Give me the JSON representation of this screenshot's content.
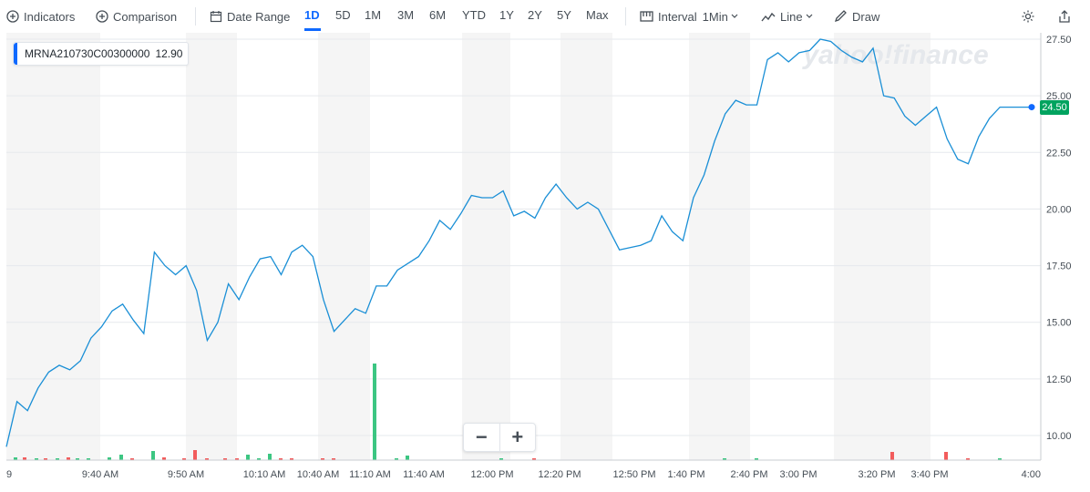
{
  "toolbar": {
    "indicators_label": "Indicators",
    "comparison_label": "Comparison",
    "date_range_label": "Date Range",
    "ranges": [
      "1D",
      "5D",
      "1M",
      "3M",
      "6M",
      "YTD",
      "1Y",
      "2Y",
      "5Y",
      "Max"
    ],
    "active_range": "1D",
    "interval_label": "Interval",
    "interval_value": "1Min",
    "chart_type_label": "Line",
    "draw_label": "Draw"
  },
  "legend": {
    "symbol": "MRNA210730C00300000",
    "price": "12.90",
    "color": "#0f69ff"
  },
  "watermark": "yahoo!finance",
  "last_price_tag": "24.50",
  "zoom": {
    "minus": "−",
    "plus": "+"
  },
  "colors": {
    "line": "#1a8fd6",
    "up_volume": "#3cc682",
    "down_volume": "#f25c5c",
    "price_tag": "#00a35f",
    "active": "#0f69ff"
  },
  "chart_data": {
    "type": "line",
    "title": "",
    "ylim": [
      9,
      27.5
    ],
    "y_ticks": [
      "27.50",
      "25.00",
      "22.50",
      "20.00",
      "17.50",
      "15.00",
      "12.50",
      "10.00"
    ],
    "x_tick_labels": [
      "9",
      "9:40 AM",
      "9:50 AM",
      "10:10 AM",
      "10:40 AM",
      "11:10 AM",
      "11:40 AM",
      "12:00 PM",
      "12:20 PM",
      "12:50 PM",
      "1:40 PM",
      "2:40 PM",
      "3:00 PM",
      "3:20 PM",
      "3:40 PM",
      "4:00"
    ],
    "series": [
      {
        "values": [
          9.5,
          11.5,
          11.1,
          12.1,
          12.8,
          13.1,
          12.9,
          13.3,
          14.3,
          14.8,
          15.5,
          15.8,
          15.1,
          14.5,
          18.1,
          17.5,
          17.1,
          17.5,
          16.4,
          14.2,
          15.0,
          16.7,
          16.0,
          17.0,
          17.8,
          17.9,
          17.1,
          18.1,
          18.4,
          17.9,
          16.0,
          14.6,
          15.1,
          15.6,
          15.4,
          16.6,
          16.6,
          17.3,
          17.6,
          17.9,
          18.6,
          19.5,
          19.1,
          19.8,
          20.6,
          20.5,
          20.5,
          20.8,
          19.7,
          19.9,
          19.6,
          20.5,
          21.1,
          20.5,
          20.0,
          20.3,
          20.0,
          19.1,
          18.2,
          18.3,
          18.4,
          18.6,
          19.7,
          19.0,
          18.6,
          20.5,
          21.5,
          23.0,
          24.2,
          24.8,
          24.6,
          24.6,
          26.6,
          26.9,
          26.5,
          26.9,
          27.0,
          27.5,
          27.4,
          27.0,
          26.7,
          26.5,
          27.1,
          25.0,
          24.9,
          24.1,
          23.7,
          24.1,
          24.5,
          23.1,
          22.2,
          22.0,
          23.2,
          24.0,
          24.5,
          24.5,
          24.5,
          24.5
        ]
      }
    ],
    "volume": [
      {
        "x": 17,
        "h": 3,
        "c": "up"
      },
      {
        "x": 27,
        "h": 3,
        "c": "down"
      },
      {
        "x": 40,
        "h": 2,
        "c": "up"
      },
      {
        "x": 50,
        "h": 2,
        "c": "down"
      },
      {
        "x": 63,
        "h": 2,
        "c": "up"
      },
      {
        "x": 75,
        "h": 3,
        "c": "down"
      },
      {
        "x": 85,
        "h": 2,
        "c": "up"
      },
      {
        "x": 97,
        "h": 2,
        "c": "up"
      },
      {
        "x": 120,
        "h": 3,
        "c": "up"
      },
      {
        "x": 133,
        "h": 6,
        "c": "up"
      },
      {
        "x": 145,
        "h": 2,
        "c": "down"
      },
      {
        "x": 168,
        "h": 10,
        "c": "up"
      },
      {
        "x": 180,
        "h": 3,
        "c": "down"
      },
      {
        "x": 202,
        "h": 2,
        "c": "down"
      },
      {
        "x": 214,
        "h": 11,
        "c": "down"
      },
      {
        "x": 227,
        "h": 2,
        "c": "down"
      },
      {
        "x": 247,
        "h": 2,
        "c": "down"
      },
      {
        "x": 260,
        "h": 2,
        "c": "down"
      },
      {
        "x": 272,
        "h": 6,
        "c": "up"
      },
      {
        "x": 284,
        "h": 2,
        "c": "up"
      },
      {
        "x": 296,
        "h": 7,
        "c": "up"
      },
      {
        "x": 308,
        "h": 2,
        "c": "down"
      },
      {
        "x": 320,
        "h": 2,
        "c": "down"
      },
      {
        "x": 354,
        "h": 2,
        "c": "down"
      },
      {
        "x": 366,
        "h": 2,
        "c": "down"
      },
      {
        "x": 411,
        "h": 106,
        "c": "up"
      },
      {
        "x": 435,
        "h": 2,
        "c": "up"
      },
      {
        "x": 447,
        "h": 5,
        "c": "up"
      },
      {
        "x": 550,
        "h": 2,
        "c": "up"
      },
      {
        "x": 586,
        "h": 2,
        "c": "down"
      },
      {
        "x": 795,
        "h": 2,
        "c": "up"
      },
      {
        "x": 830,
        "h": 2,
        "c": "up"
      },
      {
        "x": 979,
        "h": 9,
        "c": "down"
      },
      {
        "x": 1038,
        "h": 9,
        "c": "down"
      },
      {
        "x": 1062,
        "h": 2,
        "c": "down"
      },
      {
        "x": 1097,
        "h": 2,
        "c": "up"
      }
    ]
  }
}
